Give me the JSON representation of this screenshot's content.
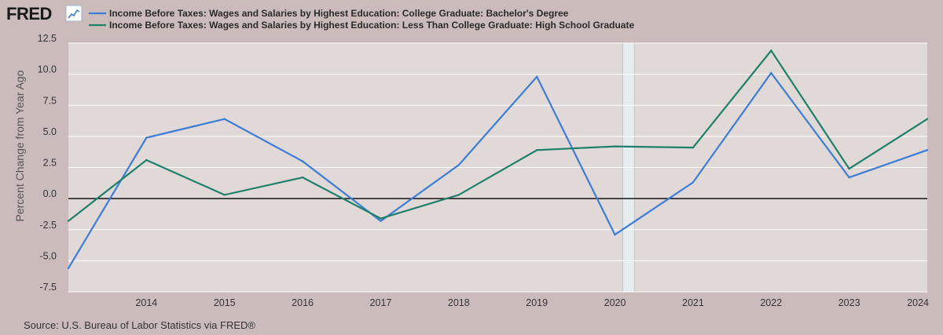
{
  "header": {
    "logo_text": "FRED",
    "logo_icon": "line-chart-icon"
  },
  "source_text": "Source: U.S. Bureau of Labor Statistics via FRED®",
  "colors": {
    "background": "#cbbcbb",
    "plot_background": "#e1d9d8",
    "recession": "#e6ecee",
    "series_1": "#3b7dd8",
    "series_2": "#1e8069"
  },
  "chart_data": {
    "type": "line",
    "ylabel": "Percent Change from Year Ago",
    "xlabel": "",
    "ylim": [
      -7.5,
      12.5
    ],
    "xlim": [
      2013,
      2024
    ],
    "y_ticks": [
      12.5,
      10.0,
      7.5,
      5.0,
      2.5,
      0.0,
      -2.5,
      -5.0,
      -7.5
    ],
    "y_tick_labels": [
      "12.5",
      "10.0",
      "7.5",
      "5.0",
      "2.5",
      "0.0",
      "-2.5",
      "-5.0",
      "-7.5"
    ],
    "x_ticks": [
      2014,
      2015,
      2016,
      2017,
      2018,
      2019,
      2020,
      2021,
      2022,
      2023,
      2024
    ],
    "x_tick_labels": [
      "2014",
      "2015",
      "2016",
      "2017",
      "2018",
      "2019",
      "2020",
      "2021",
      "2022",
      "2023",
      "2024"
    ],
    "grid": true,
    "legend_position": "top-left",
    "recession_shading": [
      [
        2020.1,
        2020.25
      ]
    ],
    "x": [
      2013,
      2014,
      2015,
      2016,
      2017,
      2018,
      2019,
      2020,
      2021,
      2022,
      2023,
      2024
    ],
    "series": [
      {
        "name": "Income Before Taxes: Wages and Salaries by Highest Education: College Graduate: Bachelor's Degree",
        "color": "#3b7dd8",
        "values": [
          -5.6,
          4.9,
          6.4,
          3.0,
          -1.8,
          2.7,
          9.8,
          -2.9,
          1.3,
          10.1,
          1.7,
          3.9
        ]
      },
      {
        "name": "Income Before Taxes: Wages and Salaries by Highest Education: Less Than College Graduate: High School Graduate",
        "color": "#1e8069",
        "values": [
          -1.8,
          3.1,
          0.3,
          1.7,
          -1.6,
          0.3,
          3.9,
          4.2,
          4.1,
          11.9,
          2.4,
          6.4
        ]
      }
    ]
  }
}
